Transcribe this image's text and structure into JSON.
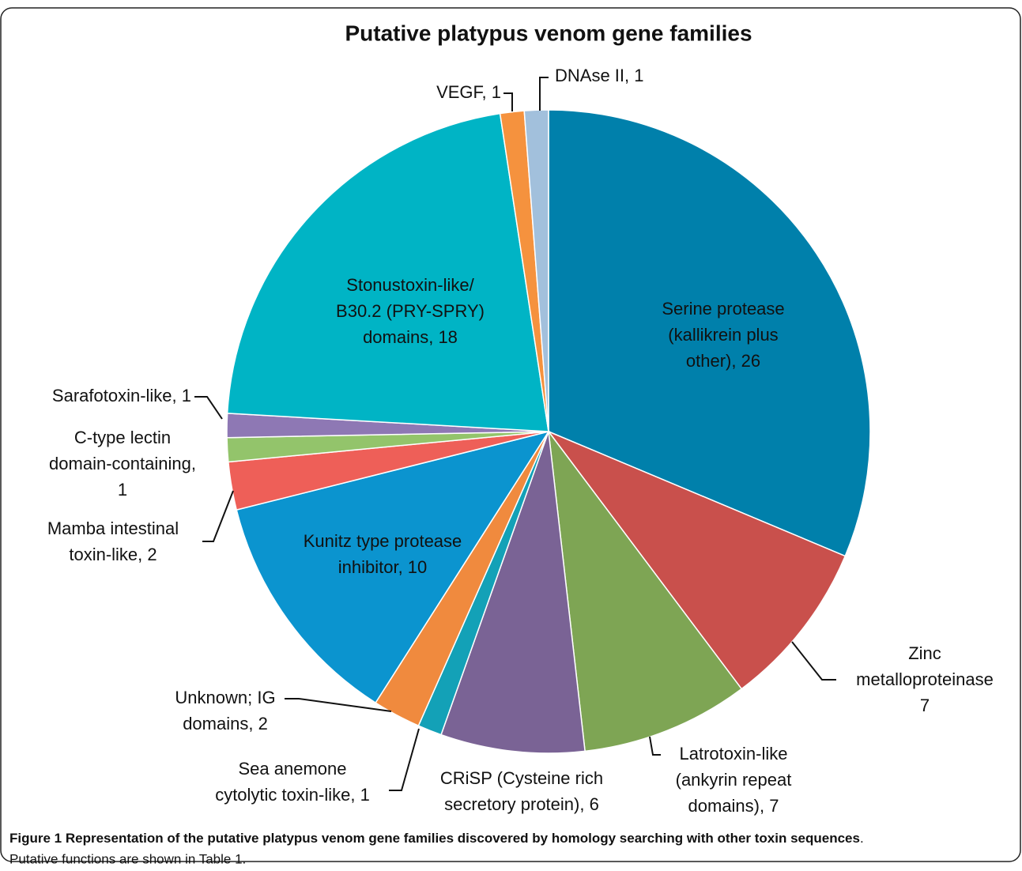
{
  "chart_data": {
    "type": "pie",
    "title": "Putative platypus venom gene families",
    "categories": [
      [
        "Serine protease",
        "(kallikrein plus",
        "other), 26"
      ],
      [
        "Zinc",
        "metalloproteinase",
        "7"
      ],
      [
        "Latrotoxin-like",
        "(ankyrin repeat",
        "domains), 7"
      ],
      [
        "CRiSP (Cysteine rich",
        "secretory protein), 6"
      ],
      [
        "Sea anemone",
        "cytolytic toxin-like, 1"
      ],
      [
        "Unknown; IG",
        "domains, 2"
      ],
      [
        "Kunitz type protease",
        "inhibitor, 10"
      ],
      [
        "Mamba intestinal",
        "toxin-like, 2"
      ],
      [
        "C-type lectin",
        "domain-containing,",
        "1"
      ],
      [
        "Sarafotoxin-like, 1"
      ],
      [
        "Stonustoxin-like/",
        "B30.2 (PRY-SPRY)",
        "domains, 18"
      ],
      [
        "VEGF, 1"
      ],
      [
        "DNAse II, 1"
      ]
    ],
    "values": [
      26,
      7,
      7,
      6,
      1,
      2,
      10,
      2,
      1,
      1,
      18,
      1,
      1
    ],
    "colors": [
      "#0080ab",
      "#c9504c",
      "#7ea554",
      "#7a6395",
      "#13a1b7",
      "#f08a3e",
      "#0b94cf",
      "#ee5f58",
      "#93c46b",
      "#8e78b4",
      "#00b4c5",
      "#f5923e",
      "#a2c0dc"
    ]
  },
  "caption": {
    "label": "Figure 1",
    "text": "Representation of the putative platypus venom gene families discovered by homology searching with other toxin sequences",
    "end": ".",
    "note": "Putative functions are shown in Table 1."
  }
}
